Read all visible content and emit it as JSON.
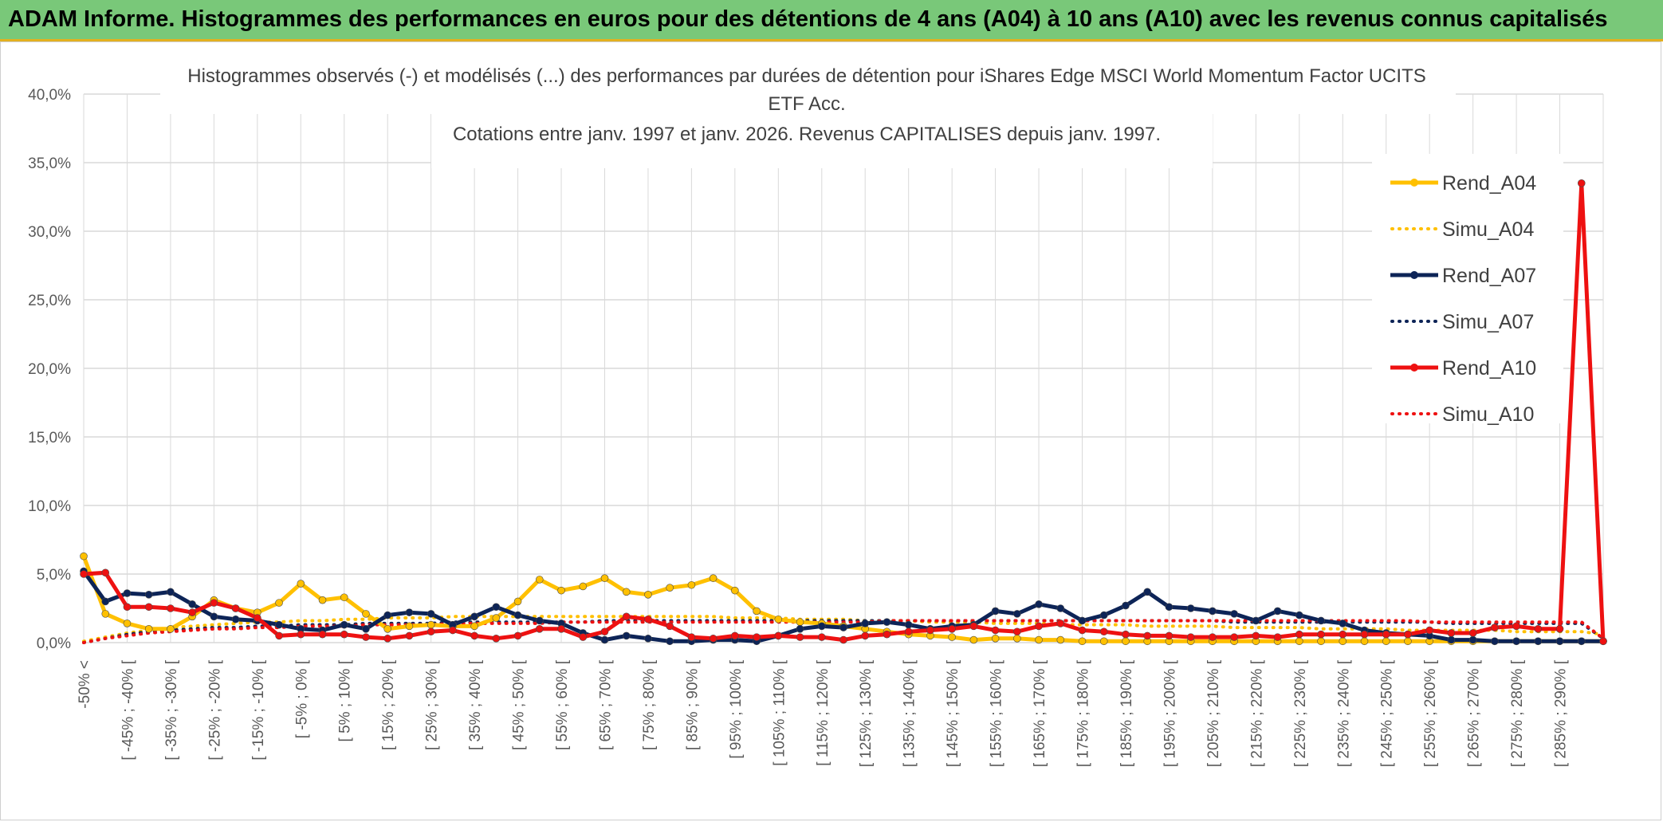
{
  "banner": {
    "title": "ADAM Informe. Histogrammes des performances en euros pour des détentions de 4 ans (A04) à 10 ans (A10) avec les revenus connus capitalisés"
  },
  "colors": {
    "banner_bg": "#79c879",
    "accent_line": "#e3b020",
    "a04": "#ffc000",
    "a07": "#0d2457",
    "a10": "#ee1111",
    "grid": "#d9d9d9"
  },
  "chart_data": {
    "type": "line",
    "title_lines": [
      "Histogrammes observés (-) et modélisés (...) des performances par durées de détention pour iShares Edge MSCI World Momentum Factor UCITS",
      "ETF Acc.",
      "Cotations entre janv. 1997 et janv. 2026. Revenus CAPITALISES depuis janv. 1997."
    ],
    "ylim": [
      0,
      40
    ],
    "yticks": [
      "0,0%",
      "5,0%",
      "10,0%",
      "15,0%",
      "20,0%",
      "25,0%",
      "30,0%",
      "35,0%",
      "40,0%"
    ],
    "grid": true,
    "legend_position": "top-right",
    "categories": [
      "-50% <",
      "[ -50% ; -45% [",
      "[ -45% ; -40% [",
      "[ -40% ; -35% [",
      "[ -35% ; -30% [",
      "[ -30% ; -25% [",
      "[ -25% ; -20% [",
      "[ -20% ; -15% [",
      "[ -15% ; -10% [",
      "[ -10% ; -5% [",
      "[ -5% ; 0% [",
      "[ 0% ; 5% [",
      "[ 5% ; 10% [",
      "[ 10% ; 15% [",
      "[ 15% ; 20% [",
      "[ 20% ; 25% [",
      "[ 25% ; 30% [",
      "[ 30% ; 35% [",
      "[ 35% ; 40% [",
      "[ 40% ; 45% [",
      "[ 45% ; 50% [",
      "[ 50% ; 55% [",
      "[ 55% ; 60% [",
      "[ 60% ; 65% [",
      "[ 65% ; 70% [",
      "[ 70% ; 75% [",
      "[ 75% ; 80% [",
      "[ 80% ; 85% [",
      "[ 85% ; 90% [",
      "[ 90% ; 95% [",
      "[ 95% ; 100% [",
      "[ 100% ; 105% [",
      "[ 105% ; 110% [",
      "[ 110% ; 115% [",
      "[ 115% ; 120% [",
      "[ 120% ; 125% [",
      "[ 125% ; 130% [",
      "[ 130% ; 135% [",
      "[ 135% ; 140% [",
      "[ 140% ; 145% [",
      "[ 145% ; 150% [",
      "[ 150% ; 155% [",
      "[ 155% ; 160% [",
      "[ 160% ; 165% [",
      "[ 165% ; 170% [",
      "[ 170% ; 175% [",
      "[ 175% ; 180% [",
      "[ 180% ; 185% [",
      "[ 185% ; 190% [",
      "[ 190% ; 195% [",
      "[ 195% ; 200% [",
      "[ 200% ; 205% [",
      "[ 205% ; 210% [",
      "[ 210% ; 215% [",
      "[ 215% ; 220% [",
      "[ 220% ; 225% [",
      "[ 225% ; 230% [",
      "[ 230% ; 235% [",
      "[ 235% ; 240% [",
      "[ 240% ; 245% [",
      "[ 245% ; 250% [",
      "[ 250% ; 255% [",
      "[ 255% ; 260% [",
      "[ 260% ; 265% [",
      "[ 265% ; 270% [",
      "[ 270% ; 275% [",
      "[ 275% ; 280% [",
      "[ 280% ; 285% [",
      "[ 285% ; 290% [",
      "[ 290% ; 295% [",
      "> 295%"
    ],
    "tick_labels_shown": [
      "-50% <",
      "[ -45% ; -40% [",
      "[ -35% ; -30% [",
      "[ -25% ; -20% [",
      "[ -15% ; -10% [",
      "[ -5% ; 0% [",
      "[ 5% ; 10% [",
      "[ 15% ; 20% [",
      "[ 25% ; 30% [",
      "[ 35% ; 40% [",
      "[ 45% ; 50% [",
      "[ 55% ; 60% [",
      "[ 65% ; 70% [",
      "[ 75% ; 80% [",
      "[ 85% ; 90% [",
      "[ 95% ; 100% [",
      "[ 105% ; 110% [",
      "[ 115% ; 120% [",
      "[ 125% ; 130% [",
      "[ 135% ; 140% [",
      "[ 145% ; 150% [",
      "[ 155% ; 160% [",
      "[ 165% ; 170% [",
      "[ 175% ; 180% [",
      "[ 185% ; 190% [",
      "[ 195% ; 200% [",
      "[ 205% ; 210% [",
      "[ 215% ; 220% [",
      "[ 225% ; 230% [",
      "[ 235% ; 240% [",
      "[ 245% ; 250% [",
      "[ 255% ; 260% [",
      "[ 265% ; 270% [",
      "[ 275% ; 280% [",
      "[ 285% ; 290% ["
    ],
    "series": [
      {
        "name": "Rend_A04",
        "key": "a04",
        "style": "solid",
        "markers": true,
        "values": [
          6.3,
          2.1,
          1.4,
          1.0,
          1.0,
          1.9,
          3.1,
          2.5,
          2.2,
          2.9,
          4.3,
          3.1,
          3.3,
          2.1,
          1.0,
          1.2,
          1.3,
          1.2,
          1.2,
          1.8,
          3.0,
          4.6,
          3.8,
          4.1,
          4.7,
          3.7,
          3.5,
          4.0,
          4.2,
          4.7,
          3.8,
          2.3,
          1.7,
          1.5,
          1.4,
          1.2,
          1.0,
          0.8,
          0.6,
          0.5,
          0.4,
          0.2,
          0.3,
          0.3,
          0.2,
          0.2,
          0.1,
          0.1,
          0.1,
          0.1,
          0.1,
          0.1,
          0.1,
          0.1,
          0.1,
          0.1,
          0.1,
          0.1,
          0.1,
          0.1,
          0.1,
          0.1,
          0.1,
          0.1,
          0.1,
          0.1,
          0.1,
          0.1,
          0.1,
          0.1,
          0.1
        ]
      },
      {
        "name": "Simu_A04",
        "key": "a04",
        "style": "dotted",
        "markers": false,
        "values": [
          0.1,
          0.4,
          0.7,
          0.9,
          1.1,
          1.2,
          1.3,
          1.4,
          1.5,
          1.5,
          1.6,
          1.6,
          1.7,
          1.7,
          1.8,
          1.8,
          1.8,
          1.9,
          1.9,
          1.9,
          1.9,
          1.9,
          1.9,
          1.9,
          1.9,
          1.9,
          1.9,
          1.9,
          1.9,
          1.9,
          1.8,
          1.8,
          1.8,
          1.7,
          1.7,
          1.7,
          1.6,
          1.6,
          1.6,
          1.5,
          1.5,
          1.5,
          1.4,
          1.4,
          1.4,
          1.3,
          1.3,
          1.3,
          1.3,
          1.2,
          1.2,
          1.2,
          1.2,
          1.1,
          1.1,
          1.1,
          1.1,
          1.0,
          1.0,
          1.0,
          1.0,
          0.9,
          0.9,
          0.9,
          0.9,
          0.9,
          0.8,
          0.8,
          0.8,
          0.8,
          0.6
        ]
      },
      {
        "name": "Rend_A07",
        "key": "a07",
        "style": "solid",
        "markers": true,
        "values": [
          5.2,
          3.0,
          3.6,
          3.5,
          3.7,
          2.8,
          1.9,
          1.7,
          1.6,
          1.3,
          1.0,
          0.9,
          1.3,
          1.0,
          2.0,
          2.2,
          2.1,
          1.3,
          1.9,
          2.6,
          2.0,
          1.6,
          1.4,
          0.7,
          0.2,
          0.5,
          0.3,
          0.1,
          0.1,
          0.2,
          0.2,
          0.1,
          0.5,
          1.0,
          1.2,
          1.1,
          1.4,
          1.5,
          1.3,
          1.0,
          1.2,
          1.3,
          2.3,
          2.1,
          2.8,
          2.5,
          1.6,
          2.0,
          2.7,
          3.7,
          2.6,
          2.5,
          2.3,
          2.1,
          1.6,
          2.3,
          2.0,
          1.6,
          1.4,
          0.9,
          0.7,
          0.6,
          0.5,
          0.2,
          0.2,
          0.1,
          0.1,
          0.1,
          0.1,
          0.1,
          0.1
        ]
      },
      {
        "name": "Simu_A07",
        "key": "a07",
        "style": "dotted",
        "markers": false,
        "values": [
          0.0,
          0.3,
          0.6,
          0.8,
          0.9,
          1.0,
          1.1,
          1.1,
          1.2,
          1.2,
          1.3,
          1.3,
          1.3,
          1.4,
          1.4,
          1.4,
          1.4,
          1.5,
          1.5,
          1.5,
          1.5,
          1.5,
          1.5,
          1.5,
          1.6,
          1.6,
          1.6,
          1.6,
          1.6,
          1.6,
          1.6,
          1.6,
          1.6,
          1.6,
          1.6,
          1.6,
          1.6,
          1.6,
          1.6,
          1.6,
          1.6,
          1.6,
          1.6,
          1.6,
          1.6,
          1.6,
          1.6,
          1.6,
          1.6,
          1.6,
          1.6,
          1.6,
          1.6,
          1.5,
          1.5,
          1.5,
          1.5,
          1.5,
          1.5,
          1.5,
          1.5,
          1.5,
          1.5,
          1.4,
          1.4,
          1.4,
          1.4,
          1.4,
          1.4,
          1.4,
          0.3
        ]
      },
      {
        "name": "Rend_A10",
        "key": "a10",
        "style": "solid",
        "markers": true,
        "values": [
          5.0,
          5.1,
          2.6,
          2.6,
          2.5,
          2.2,
          2.9,
          2.5,
          1.8,
          0.5,
          0.6,
          0.6,
          0.6,
          0.4,
          0.3,
          0.5,
          0.8,
          0.9,
          0.5,
          0.3,
          0.5,
          1.0,
          1.0,
          0.4,
          0.8,
          1.9,
          1.7,
          1.2,
          0.4,
          0.3,
          0.5,
          0.4,
          0.5,
          0.4,
          0.4,
          0.2,
          0.5,
          0.6,
          0.8,
          0.9,
          1.0,
          1.2,
          0.9,
          0.8,
          1.2,
          1.4,
          0.9,
          0.8,
          0.6,
          0.5,
          0.5,
          0.4,
          0.4,
          0.4,
          0.5,
          0.4,
          0.6,
          0.6,
          0.6,
          0.6,
          0.6,
          0.6,
          0.9,
          0.7,
          0.7,
          1.1,
          1.2,
          1.0,
          1.0,
          33.5,
          0.1
        ]
      },
      {
        "name": "Simu_A10",
        "key": "a10",
        "style": "dotted",
        "markers": false,
        "values": [
          0.0,
          0.3,
          0.5,
          0.7,
          0.8,
          0.9,
          1.0,
          1.0,
          1.1,
          1.1,
          1.2,
          1.2,
          1.2,
          1.3,
          1.3,
          1.3,
          1.3,
          1.4,
          1.4,
          1.4,
          1.4,
          1.4,
          1.5,
          1.5,
          1.5,
          1.5,
          1.5,
          1.5,
          1.5,
          1.5,
          1.5,
          1.5,
          1.5,
          1.5,
          1.5,
          1.5,
          1.5,
          1.6,
          1.6,
          1.6,
          1.6,
          1.6,
          1.6,
          1.6,
          1.6,
          1.6,
          1.6,
          1.6,
          1.6,
          1.6,
          1.6,
          1.6,
          1.6,
          1.6,
          1.6,
          1.6,
          1.6,
          1.6,
          1.6,
          1.6,
          1.6,
          1.6,
          1.5,
          1.5,
          1.5,
          1.5,
          1.5,
          1.5,
          1.5,
          1.5,
          0.3
        ]
      }
    ]
  }
}
